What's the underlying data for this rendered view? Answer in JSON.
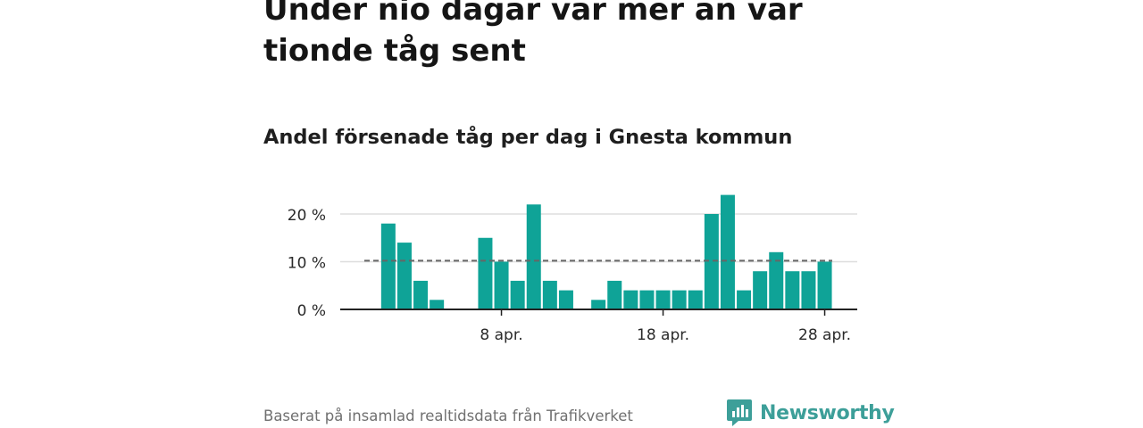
{
  "headline": "Under nio dagar var mer än var tionde tåg sent",
  "subtitle": "Andel försenade tåg per dag i Gnesta kommun",
  "source": "Baserat på insamlad realtidsdata från Trafikverket",
  "brand": {
    "name": "Newsworthy",
    "icon": "newsworthy-logo-icon"
  },
  "colors": {
    "bar": "#0fa397",
    "gridline": "#dddddd",
    "reference": "#666666",
    "brand": "#3d9f99"
  },
  "chart_data": {
    "type": "bar",
    "title": "Andel försenade tåg per dag i Gnesta kommun",
    "x": [
      1,
      2,
      3,
      4,
      5,
      6,
      7,
      8,
      9,
      10,
      11,
      12,
      13,
      14,
      15,
      16,
      17,
      18,
      19,
      20,
      21,
      22,
      23,
      24,
      25,
      26,
      27,
      28,
      29,
      30
    ],
    "x_unit": "april",
    "values": [
      18,
      14,
      6,
      2,
      0,
      0,
      15,
      10,
      6,
      22,
      6,
      4,
      0,
      2,
      6,
      4,
      4,
      4,
      4,
      4,
      20,
      24,
      4,
      8,
      12,
      8,
      8,
      10,
      null,
      null
    ],
    "reference_line": 10.2,
    "ylim": [
      0,
      25
    ],
    "y_ticks": [
      0,
      10,
      20
    ],
    "y_tick_labels": [
      "0 %",
      "10 %",
      "20 %"
    ],
    "x_ticks": [
      8,
      18,
      28
    ],
    "x_tick_labels": [
      "8 apr.",
      "18 apr.",
      "28 apr."
    ],
    "grid": true
  }
}
